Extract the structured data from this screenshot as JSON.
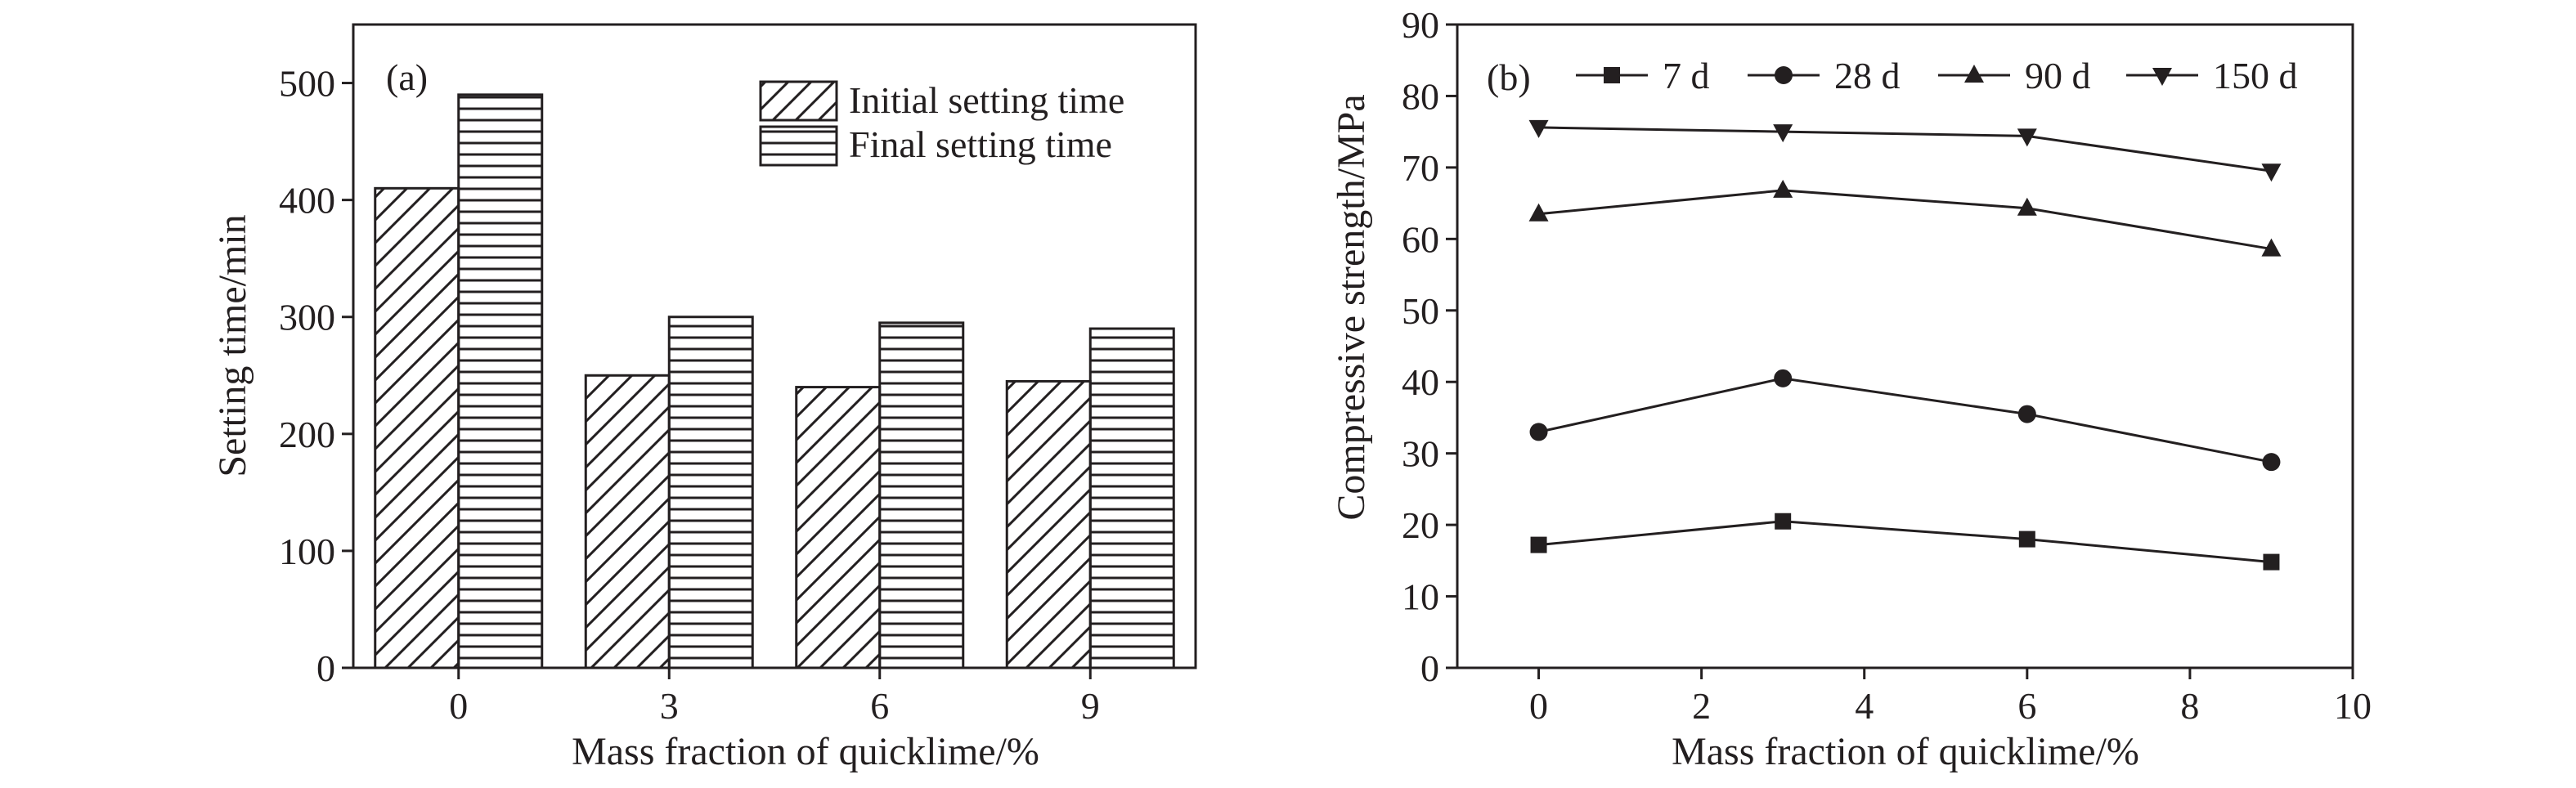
{
  "chart_data": [
    {
      "panel": "(a)",
      "type": "bar",
      "xlabel": "Mass fraction of quicklime/%",
      "ylabel": "Setting time/min",
      "categories": [
        "0",
        "3",
        "6",
        "9"
      ],
      "ylim": [
        0,
        550
      ],
      "yticks": [
        0,
        100,
        200,
        300,
        400,
        500
      ],
      "legend_position": "top-right",
      "series": [
        {
          "name": "Initial setting time",
          "pattern": "diagonal-hatch",
          "values": [
            410,
            250,
            240,
            245
          ]
        },
        {
          "name": "Final setting time",
          "pattern": "horizontal-hatch",
          "values": [
            490,
            300,
            295,
            290
          ]
        }
      ]
    },
    {
      "panel": "(b)",
      "type": "line",
      "xlabel": "Mass fraction of quicklime/%",
      "ylabel": "Compressive strength/MPa",
      "xlim": [
        -1,
        10
      ],
      "xticks": [
        0,
        2,
        4,
        6,
        8,
        10
      ],
      "ylim": [
        0,
        90
      ],
      "yticks": [
        0,
        10,
        20,
        30,
        40,
        50,
        60,
        70,
        80,
        90
      ],
      "legend_position": "top",
      "x": [
        0,
        3,
        6,
        9
      ],
      "series": [
        {
          "name": "7 d",
          "marker": "square",
          "values": [
            17.2,
            20.5,
            18.0,
            14.8
          ]
        },
        {
          "name": "28 d",
          "marker": "circle",
          "values": [
            33.0,
            40.5,
            35.5,
            28.8
          ]
        },
        {
          "name": "90 d",
          "marker": "triangle-up",
          "values": [
            63.5,
            66.8,
            64.3,
            58.6
          ]
        },
        {
          "name": "150 d",
          "marker": "triangle-down",
          "values": [
            75.6,
            75.0,
            74.4,
            69.5
          ]
        }
      ]
    }
  ]
}
